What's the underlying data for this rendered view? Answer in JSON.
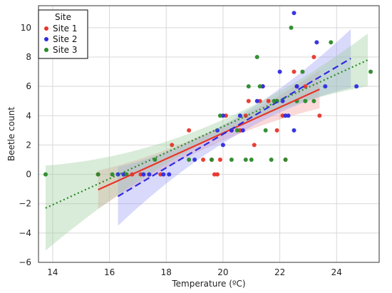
{
  "chart_data": {
    "type": "scatter",
    "title": "",
    "xlabel": "Temperature (ºC)",
    "ylabel": "Beetle count",
    "xlim": [
      13.5,
      25.5
    ],
    "ylim": [
      -6,
      11.5
    ],
    "xticks": [
      14,
      16,
      18,
      20,
      22,
      24
    ],
    "yticks": [
      -6,
      -4,
      -2,
      0,
      2,
      4,
      6,
      8,
      10
    ],
    "grid": true,
    "legend": {
      "title": "Site",
      "placement": "top-left"
    },
    "series": [
      {
        "name": "Site 1",
        "color": "#e8352a",
        "line_style": "solid",
        "fit": {
          "x": [
            15.6,
            23.4
          ],
          "y": [
            -1.05,
            5.8
          ]
        },
        "band_color": "#f4a0a0",
        "band_half_width": [
          1.3,
          0.5,
          1.3
        ],
        "points": [
          [
            15.6,
            0
          ],
          [
            16.8,
            0
          ],
          [
            17.1,
            0
          ],
          [
            17.8,
            0
          ],
          [
            18.2,
            2
          ],
          [
            18.8,
            3
          ],
          [
            19.3,
            1
          ],
          [
            19.6,
            1
          ],
          [
            19.7,
            0
          ],
          [
            19.8,
            0
          ],
          [
            19.9,
            1
          ],
          [
            20.1,
            4
          ],
          [
            20.3,
            3
          ],
          [
            20.6,
            3
          ],
          [
            20.8,
            4
          ],
          [
            20.9,
            5
          ],
          [
            21.1,
            2
          ],
          [
            21.3,
            5
          ],
          [
            21.4,
            6
          ],
          [
            21.6,
            5
          ],
          [
            21.9,
            3
          ],
          [
            22.1,
            4
          ],
          [
            22.2,
            1
          ],
          [
            22.5,
            7
          ],
          [
            22.6,
            6
          ],
          [
            22.9,
            6
          ],
          [
            23.2,
            8
          ],
          [
            23.4,
            4
          ]
        ]
      },
      {
        "name": "Site 2",
        "color": "#2c2ce0",
        "line_style": "dashed",
        "fit": {
          "x": [
            16.3,
            24.5
          ],
          "y": [
            -1.5,
            7.9
          ]
        },
        "band_color": "#9f9ff5",
        "band_half_width": [
          2.0,
          0.6,
          2.0
        ],
        "points": [
          [
            16.3,
            0
          ],
          [
            16.5,
            0
          ],
          [
            17.2,
            0
          ],
          [
            17.4,
            0
          ],
          [
            17.9,
            0
          ],
          [
            18.1,
            0
          ],
          [
            19.0,
            1
          ],
          [
            19.8,
            3
          ],
          [
            20.0,
            4
          ],
          [
            20.0,
            2
          ],
          [
            20.3,
            3
          ],
          [
            20.6,
            4
          ],
          [
            20.7,
            3
          ],
          [
            21.2,
            5
          ],
          [
            21.4,
            6
          ],
          [
            21.9,
            5
          ],
          [
            22.0,
            7
          ],
          [
            22.1,
            5
          ],
          [
            22.2,
            4
          ],
          [
            22.3,
            4
          ],
          [
            22.5,
            3
          ],
          [
            22.5,
            11
          ],
          [
            22.6,
            6
          ],
          [
            23.3,
            9
          ],
          [
            23.6,
            6
          ],
          [
            24.7,
            6
          ]
        ]
      },
      {
        "name": "Site 3",
        "color": "#2a8a2a",
        "line_style": "dotted",
        "fit": {
          "x": [
            13.75,
            25.1
          ],
          "y": [
            -2.3,
            7.8
          ]
        },
        "band_color": "#9fd09f",
        "band_half_width": [
          2.9,
          0.5,
          1.8
        ],
        "points": [
          [
            13.75,
            0
          ],
          [
            15.6,
            0
          ],
          [
            16.1,
            0
          ],
          [
            16.6,
            0
          ],
          [
            17.6,
            1
          ],
          [
            18.8,
            1
          ],
          [
            19.6,
            1
          ],
          [
            19.9,
            4
          ],
          [
            20.3,
            1
          ],
          [
            20.5,
            3
          ],
          [
            20.8,
            1
          ],
          [
            20.9,
            6
          ],
          [
            21.0,
            1
          ],
          [
            21.2,
            8
          ],
          [
            21.3,
            6
          ],
          [
            21.5,
            3
          ],
          [
            21.7,
            1
          ],
          [
            21.8,
            5
          ],
          [
            21.9,
            5
          ],
          [
            22.2,
            1
          ],
          [
            22.4,
            10
          ],
          [
            22.6,
            5
          ],
          [
            22.8,
            7
          ],
          [
            22.9,
            5
          ],
          [
            23.2,
            5
          ],
          [
            23.8,
            9
          ],
          [
            25.2,
            7
          ]
        ]
      }
    ]
  }
}
